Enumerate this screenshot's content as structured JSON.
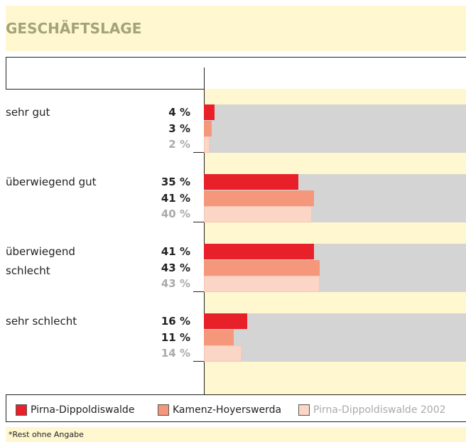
{
  "chart_data": {
    "type": "hbar",
    "title": "GESCHÄFTSLAGE",
    "categories": [
      "sehr gut",
      "überwiegend gut",
      "überwiegend\nschlecht",
      "sehr schlecht"
    ],
    "xlim": [
      0,
      100
    ],
    "series": [
      {
        "name": "Pirna-Dippoldiswalde",
        "color": "#e8202a",
        "values": [
          4,
          35,
          41,
          16
        ],
        "value_labels": [
          "4 %",
          "35 %",
          "41 %",
          "16 %"
        ]
      },
      {
        "name": "Kamenz-Hoyerswerda",
        "color": "#f4977a",
        "values": [
          3,
          41,
          43,
          11
        ],
        "value_labels": [
          "3 %",
          "41 %",
          "43 %",
          "11 %"
        ]
      },
      {
        "name": "Pirna-Dippoldiswalde 2002",
        "color": "#fbd5c6",
        "values": [
          2,
          40,
          43,
          14
        ],
        "value_labels": [
          "2 %",
          "40 %",
          "43 %",
          "14 %"
        ]
      }
    ],
    "footnote": "*Rest ohne Angabe"
  }
}
